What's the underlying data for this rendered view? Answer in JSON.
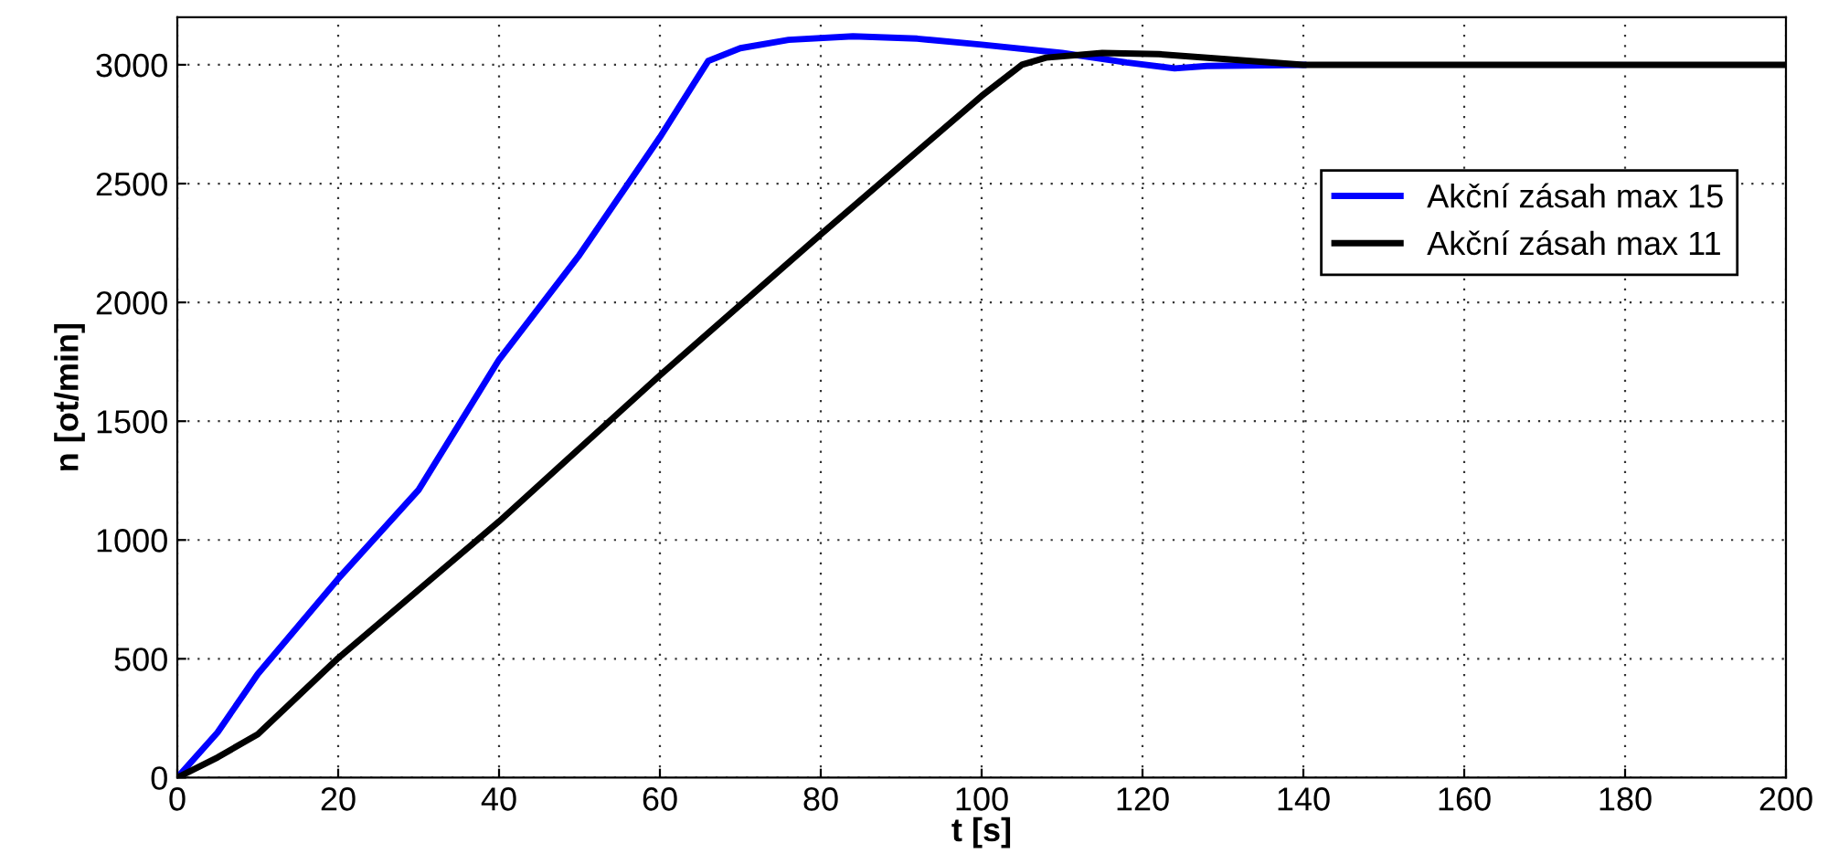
{
  "chart_data": {
    "type": "line",
    "xlabel": "t [s]",
    "ylabel": "n [ot/min]",
    "xlim": [
      0,
      200
    ],
    "ylim": [
      0,
      3200
    ],
    "xticks": [
      0,
      20,
      40,
      60,
      80,
      100,
      120,
      140,
      160,
      180,
      200
    ],
    "yticks": [
      0,
      500,
      1000,
      1500,
      2000,
      2500,
      3000
    ],
    "grid": true,
    "legend": "right",
    "line_style": "solid",
    "marker": "none",
    "series": [
      {
        "name": "Akční zásah max 15",
        "color": "#0000ff",
        "x": [
          0,
          5,
          10,
          20,
          30,
          40,
          50,
          60,
          66,
          70,
          76,
          84,
          92,
          100,
          110,
          118,
          124,
          128,
          140
        ],
        "values": [
          0,
          190,
          436,
          837,
          1211,
          1759,
          2200,
          2695,
          3016,
          3070,
          3105,
          3120,
          3110,
          3085,
          3050,
          3010,
          2985,
          2995,
          3000
        ]
      },
      {
        "name": "Akční zásah max 11",
        "color": "#000000",
        "x": [
          0,
          5,
          10,
          20,
          40,
          60,
          80,
          100,
          105,
          108,
          115,
          122,
          130,
          140,
          150,
          200
        ],
        "values": [
          0,
          85,
          182,
          503,
          1078,
          1693,
          2286,
          2869,
          3000,
          3030,
          3050,
          3045,
          3025,
          3000,
          3000,
          3000
        ]
      }
    ]
  }
}
